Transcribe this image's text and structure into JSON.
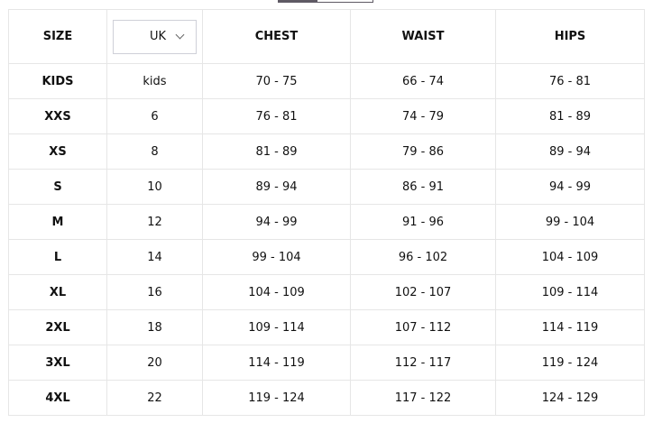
{
  "header": {
    "size": "SIZE",
    "unit_select": "UK",
    "chest": "CHEST",
    "waist": "WAIST",
    "hips": "HIPS"
  },
  "rows": [
    [
      "KIDS",
      "kids",
      "70 - 75",
      "66 - 74",
      "76 - 81"
    ],
    [
      "XXS",
      "6",
      "76 - 81",
      "74 - 79",
      "81 - 89"
    ],
    [
      "XS",
      "8",
      "81 - 89",
      "79 - 86",
      "89 - 94"
    ],
    [
      "S",
      "10",
      "89 - 94",
      "86 - 91",
      "94 - 99"
    ],
    [
      "M",
      "12",
      "94 - 99",
      "91 - 96",
      "99 - 104"
    ],
    [
      "L",
      "14",
      "99 - 104",
      "96 - 102",
      "104 - 109"
    ],
    [
      "XL",
      "16",
      "104 - 109",
      "102 - 107",
      "109 - 114"
    ],
    [
      "2XL",
      "18",
      "109 - 114",
      "107 - 112",
      "114 - 119"
    ],
    [
      "3XL",
      "20",
      "114 - 119",
      "112 - 117",
      "119 - 124"
    ],
    [
      "4XL",
      "22",
      "119 - 124",
      "117 - 122",
      "124 - 129"
    ]
  ]
}
